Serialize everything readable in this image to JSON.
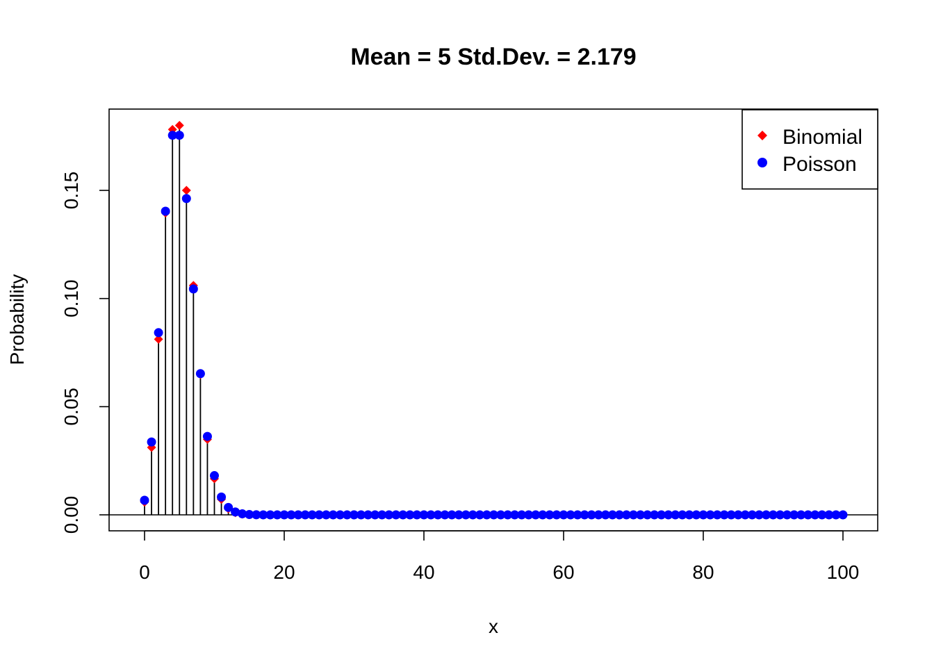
{
  "chart_data": {
    "type": "scatter",
    "title": "Mean = 5 Std.Dev. = 2.179",
    "xlabel": "x",
    "ylabel": "Probability",
    "xlim": [
      0,
      100
    ],
    "ylim": [
      0,
      0.18
    ],
    "x_ticks": [
      "0",
      "20",
      "40",
      "60",
      "80",
      "100"
    ],
    "y_ticks": [
      "0.00",
      "0.05",
      "0.10",
      "0.15"
    ],
    "grid": false,
    "legend_position": "top-right",
    "legend": [
      {
        "label": "Binomial",
        "color": "#ff0000",
        "marker": "diamond"
      },
      {
        "label": "Poisson",
        "color": "#0000ff",
        "marker": "circle"
      }
    ],
    "series": [
      {
        "name": "Binomial",
        "color": "#ff0000",
        "marker": "diamond",
        "x_start": 0,
        "values": [
          0.00592,
          0.03116,
          0.08118,
          0.13958,
          0.17814,
          0.18002,
          0.15001,
          0.10603,
          0.06487,
          0.0349,
          0.01672,
          0.0072,
          0.00281,
          0.001,
          0.00033,
          0.0001,
          3e-05,
          1e-05
        ]
      },
      {
        "name": "Poisson",
        "color": "#0000ff",
        "marker": "circle",
        "x_start": 0,
        "values": [
          0.00674,
          0.03369,
          0.08422,
          0.14037,
          0.17547,
          0.17547,
          0.14622,
          0.10444,
          0.06528,
          0.03627,
          0.01813,
          0.00824,
          0.00343,
          0.00132,
          0.00047,
          0.00016,
          5e-05,
          1e-05
        ]
      }
    ],
    "n_points": 101
  }
}
